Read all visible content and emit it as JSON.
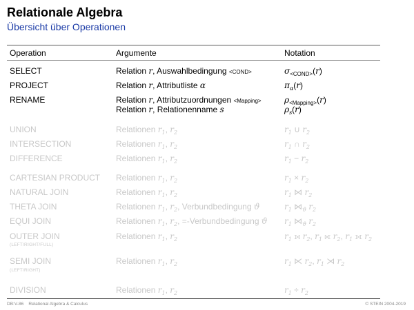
{
  "header": {
    "title": "Relationale Algebra",
    "subtitle": "Übersicht über Operationen"
  },
  "table": {
    "columns": [
      "Operation",
      "Argumente",
      "Notation"
    ],
    "rows": [
      {
        "op": "SELECT",
        "args": "Relation r, Auswahlbedingung <COND>",
        "notation": "σ<COND>(r)"
      },
      {
        "op": "PROJECT",
        "args": "Relation r, Attributliste α",
        "notation": "πα(r)"
      },
      {
        "op": "RENAME",
        "args": "Relation r, Attributzuordnungen <Mapping>",
        "args2": "Relation r, Relationenname s",
        "notation": "ρ<Mapping>(r)",
        "notation2": "ρs(r)"
      },
      {
        "op": "UNION",
        "args": "Relationen r1, r2",
        "notation": "r1 ∪ r2"
      },
      {
        "op": "INTERSECTION",
        "args": "Relationen r1, r2",
        "notation": "r1 ∩ r2"
      },
      {
        "op": "DIFFERENCE",
        "args": "Relationen r1, r2",
        "notation": "r1 − r2"
      },
      {
        "op": "CARTESIAN PRODUCT",
        "args": "Relationen r1, r2",
        "notation": "r1 × r2"
      },
      {
        "op": "NATURAL JOIN",
        "args": "Relationen r1, r2",
        "notation": "r1 ⋈ r2"
      },
      {
        "op": "THETA JOIN",
        "args": "Relationen r1, r2, Verbundbedingung ϑ",
        "notation": "r1 ⋈ϑ r2"
      },
      {
        "op": "EQUI JOIN",
        "args": "Relationen r1, r2, =-Verbundbedingung ϑ",
        "notation": "r1 ⋈ϑ r2"
      },
      {
        "op": "OUTER JOIN",
        "op_note": "(LEFT/RIGHT/FULL)",
        "args": "Relationen r1, r2",
        "notation": "r1 ⟕ r2, r1 ⟖ r2, r1 ⟗ r2"
      },
      {
        "op": "SEMI JOIN",
        "op_note": "(LEFT/RIGHT)",
        "args": "Relationen r1, r2",
        "notation": "r1 ⋉ r2, r1 ⋊ r2"
      },
      {
        "op": "DIVISION",
        "args": "Relationen r1, r2",
        "notation": "r1 ÷ r2"
      }
    ]
  },
  "footer": {
    "left": "DB:V-86    Relational Algebra & Calculus",
    "right": "© STEIN 2004-2019"
  }
}
